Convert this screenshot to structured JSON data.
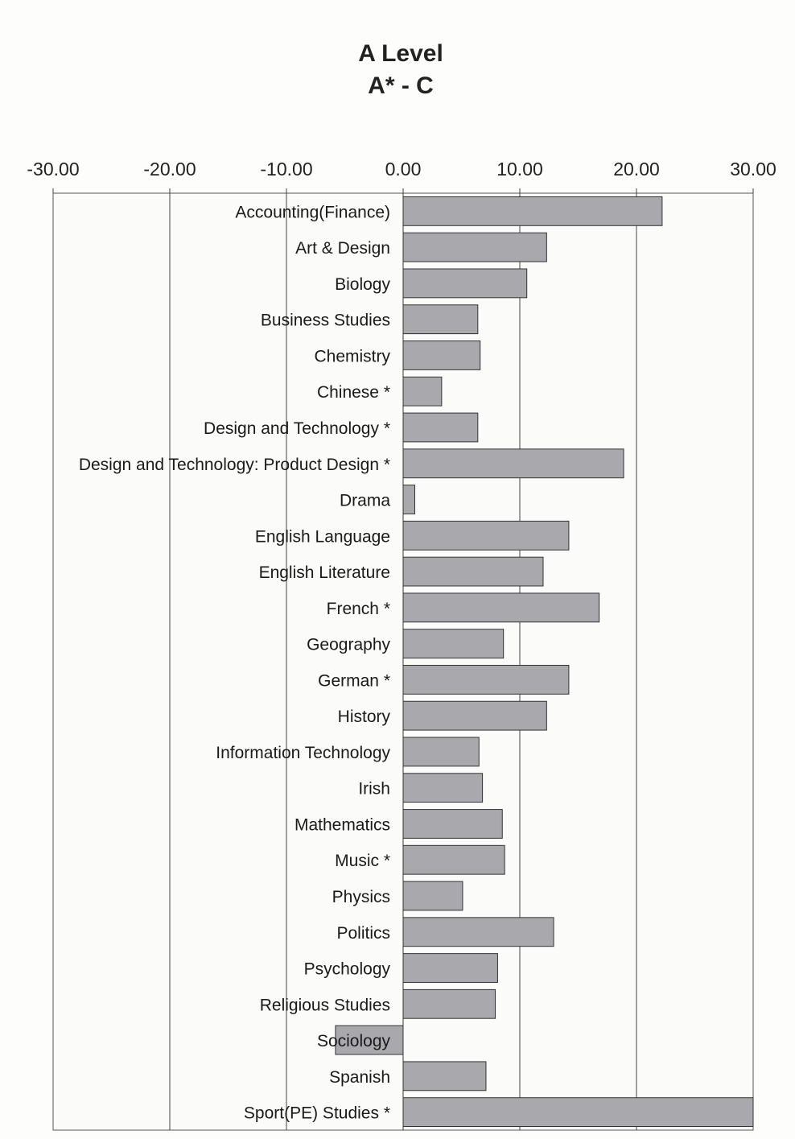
{
  "chart_data": {
    "type": "bar",
    "orientation": "horizontal",
    "title": [
      "A Level",
      "A* - C"
    ],
    "xlim": [
      -30,
      30
    ],
    "xticks": [
      "-30.00",
      "-20.00",
      "-10.00",
      "0.00",
      "10.00",
      "20.00",
      "30.00"
    ],
    "xtick_values": [
      -30,
      -20,
      -10,
      0,
      10,
      20,
      30
    ],
    "grid": "vertical",
    "bar_color": "#a9a9ad",
    "categories": [
      "Accounting(Finance)",
      "Art & Design",
      "Biology",
      "Business Studies",
      "Chemistry",
      "Chinese *",
      "Design and Technology *",
      "Design and Technology: Product Design *",
      "Drama",
      "English Language",
      "English Literature",
      "French *",
      "Geography",
      "German *",
      "History",
      "Information Technology",
      "Irish",
      "Mathematics",
      "Music *",
      "Physics",
      "Politics",
      "Psychology",
      "Religious Studies",
      "Sociology",
      "Spanish",
      "Sport(PE) Studies *"
    ],
    "values": [
      22.2,
      12.3,
      10.6,
      6.4,
      6.6,
      3.3,
      6.4,
      18.9,
      1.0,
      14.2,
      12.0,
      16.8,
      8.6,
      14.2,
      12.3,
      6.5,
      6.8,
      8.5,
      8.7,
      5.1,
      12.9,
      8.1,
      7.9,
      -5.8,
      7.1,
      30.0
    ]
  }
}
